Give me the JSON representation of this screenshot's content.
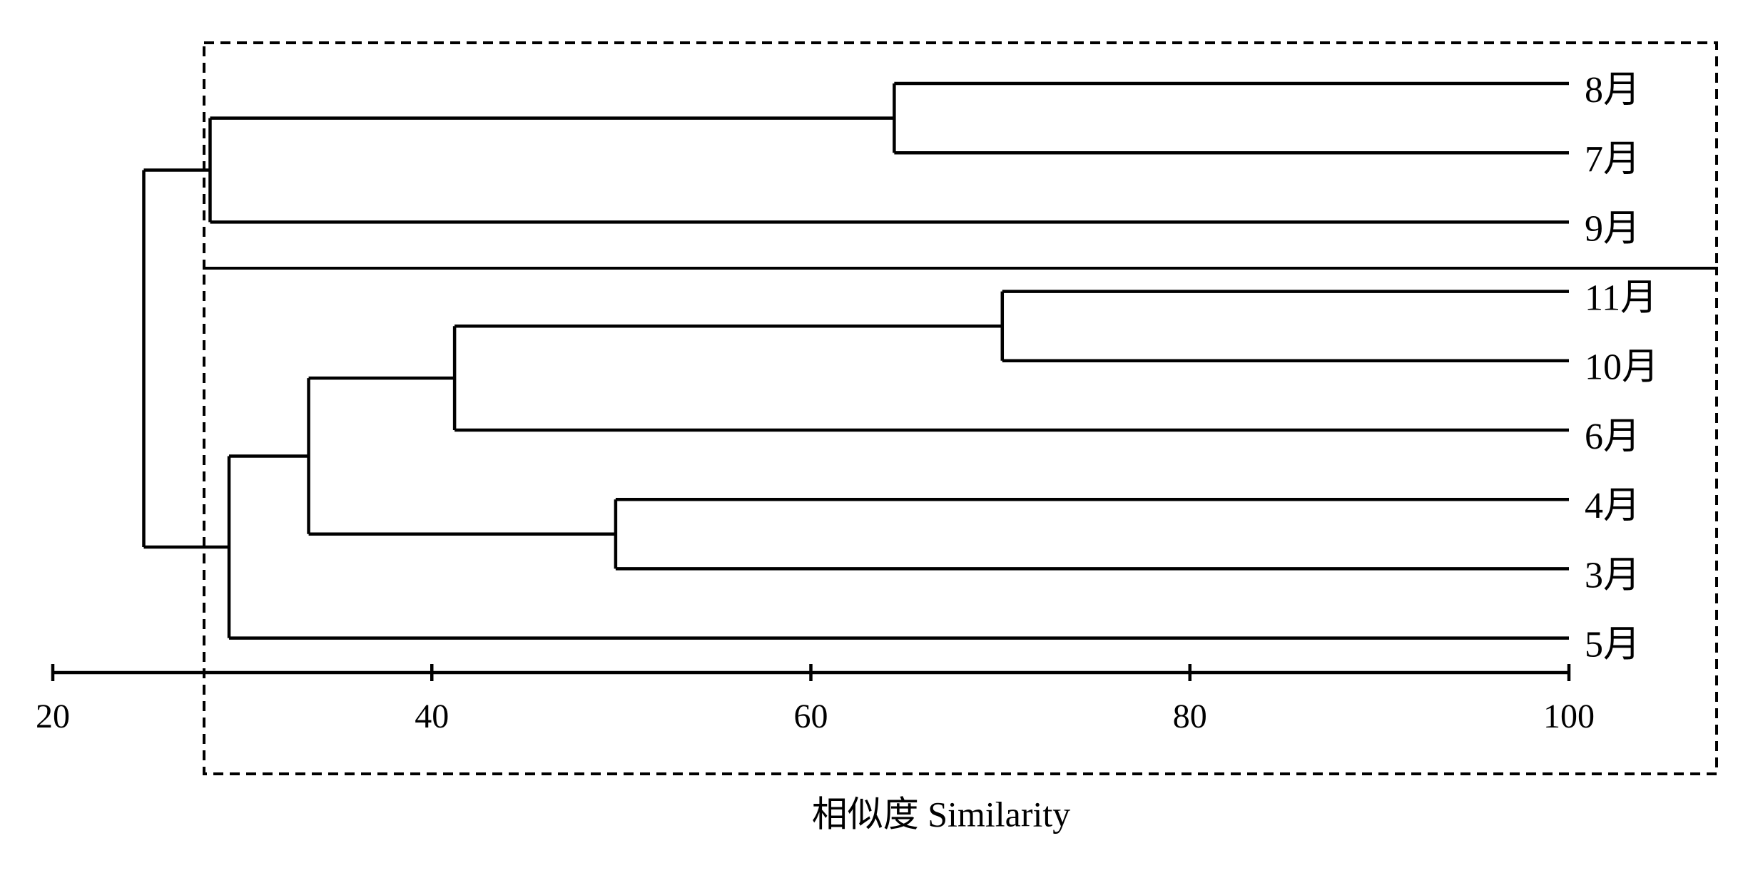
{
  "chart_data": {
    "type": "dendrogram",
    "x_label": "相似度 Similarity",
    "xlim": [
      20,
      100
    ],
    "xticks": [
      20,
      40,
      60,
      80,
      100
    ],
    "color": "#000000",
    "tree": {
      "value": 24.8,
      "children": [
        {
          "value": 28.3,
          "children": [
            {
              "value": 64.4,
              "children": [
                {
                  "label": "8月"
                },
                {
                  "label": "7月"
                }
              ]
            },
            {
              "label": "9月"
            }
          ]
        },
        {
          "value": 29.3,
          "children": [
            {
              "value": 33.5,
              "children": [
                {
                  "value": 41.2,
                  "children": [
                    {
                      "value": 70.1,
                      "children": [
                        {
                          "label": "11月"
                        },
                        {
                          "label": "10月"
                        }
                      ]
                    },
                    {
                      "label": "6月"
                    }
                  ]
                },
                {
                  "value": 49.7,
                  "children": [
                    {
                      "label": "4月"
                    },
                    {
                      "label": "3月"
                    }
                  ]
                }
              ]
            },
            {
              "label": "5月"
            }
          ]
        }
      ]
    }
  }
}
